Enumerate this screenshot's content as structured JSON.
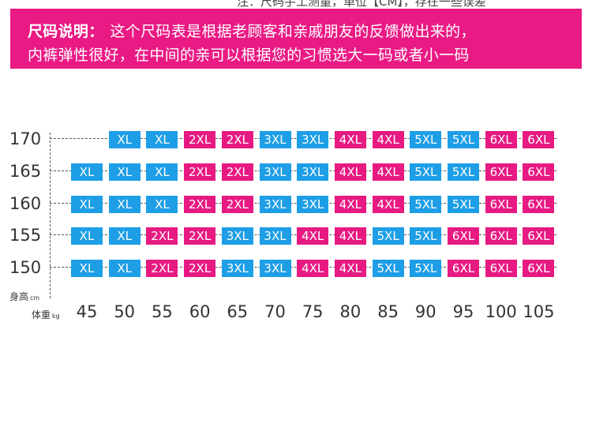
{
  "top_note": "注：尺码手工测量，单位【CM】，存在一些误差",
  "banner": {
    "label": "尺码说明：",
    "line1": "这个尺码表是根据老顾客和亲戚朋友的反馈做出来的，",
    "line2": "内裤弹性很好，在中间的亲可以根据您的习惯选大一码或者小一码"
  },
  "colors": {
    "banner": "#ea1a84",
    "blue": "#1e9ee6",
    "pink": "#e71a82"
  },
  "axis_labels": {
    "height": "身高",
    "height_unit": "cm",
    "weight": "体重",
    "weight_unit": "kg"
  },
  "chart_data": {
    "type": "table",
    "weights": [
      "45",
      "50",
      "55",
      "60",
      "65",
      "70",
      "75",
      "80",
      "85",
      "90",
      "95",
      "100",
      "105"
    ],
    "rows": [
      {
        "height": "170",
        "sizes": [
          "",
          "XL",
          "XL",
          "2XL",
          "2XL",
          "3XL",
          "3XL",
          "4XL",
          "4XL",
          "5XL",
          "5XL",
          "6XL",
          "6XL"
        ]
      },
      {
        "height": "165",
        "sizes": [
          "XL",
          "XL",
          "XL",
          "2XL",
          "2XL",
          "3XL",
          "3XL",
          "4XL",
          "4XL",
          "5XL",
          "5XL",
          "6XL",
          "6XL"
        ]
      },
      {
        "height": "160",
        "sizes": [
          "XL",
          "XL",
          "XL",
          "2XL",
          "2XL",
          "3XL",
          "3XL",
          "4XL",
          "4XL",
          "5XL",
          "5XL",
          "6XL",
          "6XL"
        ]
      },
      {
        "height": "155",
        "sizes": [
          "XL",
          "XL",
          "2XL",
          "2XL",
          "3XL",
          "3XL",
          "4XL",
          "4XL",
          "5XL",
          "5XL",
          "6XL",
          "6XL",
          "6XL"
        ]
      },
      {
        "height": "150",
        "sizes": [
          "XL",
          "XL",
          "2XL",
          "2XL",
          "3XL",
          "3XL",
          "4XL",
          "4XL",
          "5XL",
          "5XL",
          "6XL",
          "6XL",
          "6XL"
        ]
      }
    ],
    "size_colors": {
      "XL": "blue",
      "2XL": "pink",
      "3XL": "blue",
      "4XL": "pink",
      "5XL": "blue",
      "6XL": "pink"
    }
  }
}
